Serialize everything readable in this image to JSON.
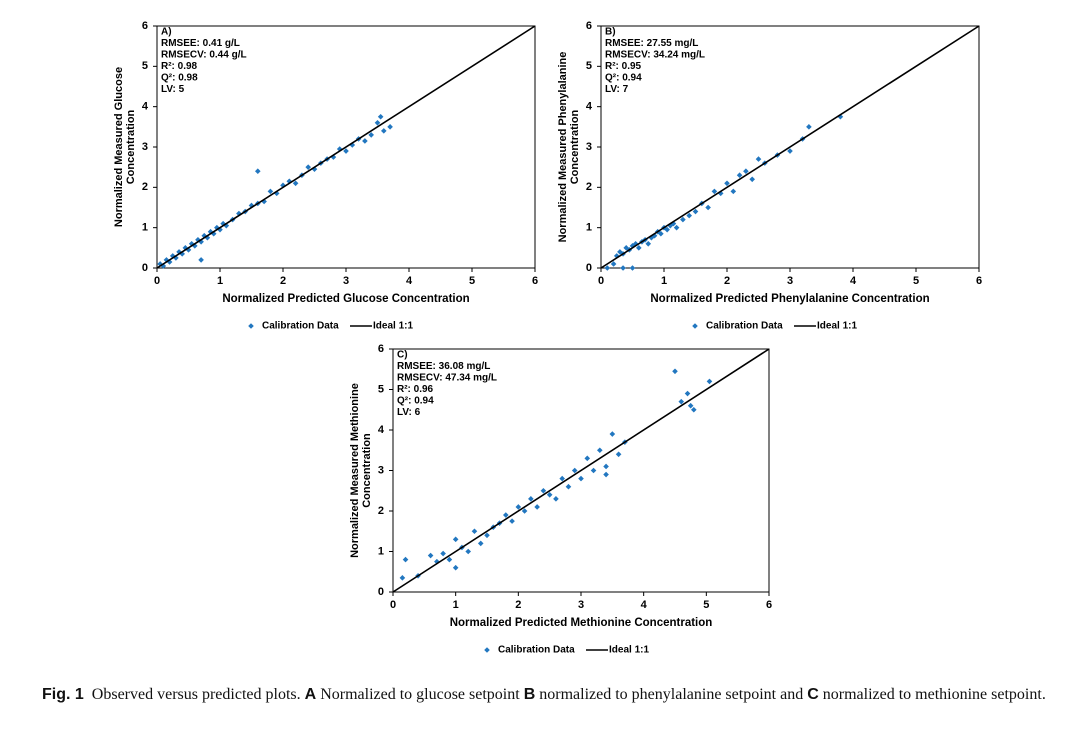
{
  "chart_data": [
    {
      "type": "scatter",
      "annotations": [
        "A)",
        "RMSEE: 0.41 g/L",
        "RMSECV: 0.44 g/L",
        "R²: 0.98",
        "Q²: 0.98",
        "LV: 5"
      ],
      "xlabel": "Normalized Predicted Glucose Concentration",
      "ylabel": [
        "Normalized Measured Glucose",
        "Concentration"
      ],
      "xlim": [
        0,
        6
      ],
      "ylim": [
        0,
        6
      ],
      "xticks": [
        0,
        1,
        2,
        3,
        4,
        5,
        6
      ],
      "yticks": [
        0,
        1,
        2,
        3,
        4,
        5,
        6
      ],
      "series": [
        {
          "name": "Calibration Data",
          "color": "#2277c0",
          "marker": "diamond",
          "x": [
            0.05,
            0.1,
            0.15,
            0.2,
            0.25,
            0.3,
            0.35,
            0.4,
            0.45,
            0.5,
            0.55,
            0.6,
            0.65,
            0.7,
            0.75,
            0.8,
            0.85,
            0.9,
            0.95,
            1.0,
            1.05,
            1.1,
            1.2,
            1.3,
            1.4,
            1.5,
            1.6,
            1.7,
            1.8,
            1.9,
            2.0,
            2.1,
            2.2,
            2.3,
            2.4,
            2.5,
            2.6,
            2.7,
            2.8,
            2.9,
            3.0,
            3.1,
            3.2,
            3.3,
            3.4,
            3.5,
            3.6,
            3.7,
            0.7,
            1.6,
            3.55
          ],
          "values": [
            0.1,
            0.05,
            0.2,
            0.15,
            0.3,
            0.25,
            0.4,
            0.35,
            0.5,
            0.45,
            0.6,
            0.55,
            0.7,
            0.65,
            0.8,
            0.75,
            0.9,
            0.85,
            1.0,
            0.95,
            1.1,
            1.05,
            1.2,
            1.35,
            1.4,
            1.55,
            1.6,
            1.65,
            1.9,
            1.85,
            2.05,
            2.15,
            2.1,
            2.3,
            2.5,
            2.45,
            2.6,
            2.7,
            2.75,
            2.95,
            2.9,
            3.05,
            3.2,
            3.15,
            3.3,
            3.6,
            3.4,
            3.5,
            0.2,
            2.4,
            3.75
          ]
        },
        {
          "name": "Ideal 1:1",
          "color": "#000000",
          "marker": "line",
          "x": [
            0,
            6
          ],
          "values": [
            0,
            6
          ]
        }
      ]
    },
    {
      "type": "scatter",
      "annotations": [
        "B)",
        "RMSEE: 27.55 mg/L",
        "RMSECV: 34.24 mg/L",
        "R²: 0.95",
        "Q²: 0.94",
        "LV: 7"
      ],
      "xlabel": "Normalized Predicted Phenylalanine Concentration",
      "ylabel": [
        "Normalized Measured Phenylalanine",
        "Concentration"
      ],
      "xlim": [
        0,
        6
      ],
      "ylim": [
        0,
        6
      ],
      "xticks": [
        0,
        1,
        2,
        3,
        4,
        5,
        6
      ],
      "yticks": [
        0,
        1,
        2,
        3,
        4,
        5,
        6
      ],
      "series": [
        {
          "name": "Calibration Data",
          "color": "#2277c0",
          "marker": "diamond",
          "x": [
            0.1,
            0.2,
            0.25,
            0.3,
            0.35,
            0.4,
            0.45,
            0.5,
            0.55,
            0.6,
            0.65,
            0.7,
            0.75,
            0.8,
            0.85,
            0.9,
            0.95,
            1.0,
            1.05,
            1.1,
            1.15,
            1.2,
            1.3,
            1.4,
            1.5,
            1.6,
            1.7,
            1.8,
            1.9,
            2.0,
            2.1,
            2.2,
            2.3,
            2.4,
            2.5,
            2.6,
            2.8,
            3.0,
            3.2,
            3.3,
            3.8,
            0.35,
            0.5
          ],
          "values": [
            0.0,
            0.1,
            0.3,
            0.4,
            0.35,
            0.5,
            0.45,
            0.55,
            0.6,
            0.5,
            0.65,
            0.7,
            0.6,
            0.75,
            0.8,
            0.9,
            0.85,
            1.0,
            0.95,
            1.05,
            1.1,
            1.0,
            1.2,
            1.3,
            1.4,
            1.6,
            1.5,
            1.9,
            1.85,
            2.1,
            1.9,
            2.3,
            2.4,
            2.2,
            2.7,
            2.6,
            2.8,
            2.9,
            3.2,
            3.5,
            3.75,
            0.0,
            0.0
          ]
        },
        {
          "name": "Ideal 1:1",
          "color": "#000000",
          "marker": "line",
          "x": [
            0,
            6
          ],
          "values": [
            0,
            6
          ]
        }
      ]
    },
    {
      "type": "scatter",
      "annotations": [
        "C)",
        "RMSEE: 36.08 mg/L",
        "RMSECV: 47.34 mg/L",
        "R²: 0.96",
        "Q²: 0.94",
        "LV: 6"
      ],
      "xlabel": "Normalized Predicted Methionine Concentration",
      "ylabel": [
        "Normalized Measured Methionine",
        "Concentration"
      ],
      "xlim": [
        0,
        6
      ],
      "ylim": [
        0,
        6
      ],
      "xticks": [
        0,
        1,
        2,
        3,
        4,
        5,
        6
      ],
      "yticks": [
        0,
        1,
        2,
        3,
        4,
        5,
        6
      ],
      "series": [
        {
          "name": "Calibration Data",
          "color": "#2277c0",
          "marker": "diamond",
          "x": [
            0.15,
            0.2,
            0.4,
            0.6,
            0.7,
            0.8,
            0.9,
            1.0,
            1.1,
            1.2,
            1.3,
            1.4,
            1.5,
            1.6,
            1.7,
            1.8,
            1.9,
            2.0,
            2.1,
            2.2,
            2.3,
            2.4,
            2.5,
            2.6,
            2.7,
            2.8,
            2.9,
            3.0,
            3.1,
            3.2,
            3.3,
            3.4,
            3.5,
            3.6,
            3.7,
            4.5,
            4.6,
            4.7,
            4.75,
            4.8,
            5.05,
            1.0,
            3.4
          ],
          "values": [
            0.35,
            0.8,
            0.4,
            0.9,
            0.75,
            0.95,
            0.8,
            1.3,
            1.1,
            1.0,
            1.5,
            1.2,
            1.4,
            1.6,
            1.7,
            1.9,
            1.75,
            2.1,
            2.0,
            2.3,
            2.1,
            2.5,
            2.4,
            2.3,
            2.8,
            2.6,
            3.0,
            2.8,
            3.3,
            3.0,
            3.5,
            3.1,
            3.9,
            3.4,
            3.7,
            5.45,
            4.7,
            4.9,
            4.6,
            4.5,
            5.2,
            0.6,
            2.9
          ]
        },
        {
          "name": "Ideal 1:1",
          "color": "#000000",
          "marker": "line",
          "x": [
            0,
            6
          ],
          "values": [
            0,
            6
          ]
        }
      ]
    }
  ],
  "caption": {
    "label": "Fig. 1",
    "parts": [
      "Observed versus predicted plots. ",
      "A",
      " Normalized to glucose setpoint ",
      "B",
      " normalized to phenylalanine setpoint and ",
      "C",
      " normalized to methionine setpoint."
    ]
  }
}
